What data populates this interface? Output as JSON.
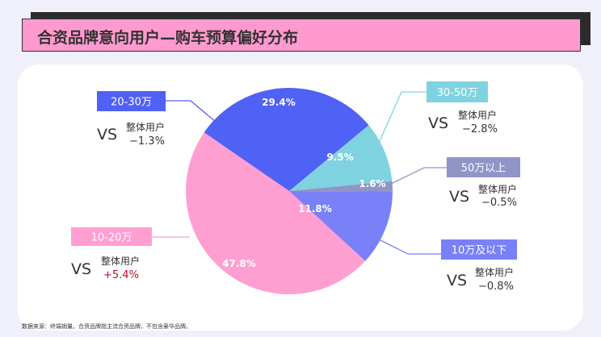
{
  "title": "合资品牌意向用户—购车预算偏好分布",
  "source_note": "数据来源：终端销量。合资品牌指主流合资品牌，不包含豪华品牌。",
  "chart_data": {
    "type": "pie",
    "categories": [
      "20-30万",
      "30-50万",
      "50万以上",
      "10万及以下",
      "10-20万"
    ],
    "values": [
      29.4,
      9.5,
      1.6,
      11.8,
      47.8
    ],
    "data_labels": [
      "29.4%",
      "9.5%",
      "1.6%",
      "11.8%",
      "47.8%"
    ],
    "colors": [
      "#5061f6",
      "#7fd3e0",
      "#9094c6",
      "#7a80f7",
      "#ff9fd1"
    ],
    "callouts": [
      {
        "category": "20-30万",
        "vs": "VS",
        "compare_label": "整体用户",
        "diff": "−1.3%",
        "diff_color": "#333333"
      },
      {
        "category": "30-50万",
        "vs": "VS",
        "compare_label": "整体用户",
        "diff": "−2.8%",
        "diff_color": "#333333"
      },
      {
        "category": "50万以上",
        "vs": "VS",
        "compare_label": "整体用户",
        "diff": "−0.5%",
        "diff_color": "#333333"
      },
      {
        "category": "10万及以下",
        "vs": "VS",
        "compare_label": "整体用户",
        "diff": "−0.8%",
        "diff_color": "#333333"
      },
      {
        "category": "10-20万",
        "vs": "VS",
        "compare_label": "整体用户",
        "diff": "+5.4%",
        "diff_color": "#c0102a"
      }
    ]
  }
}
